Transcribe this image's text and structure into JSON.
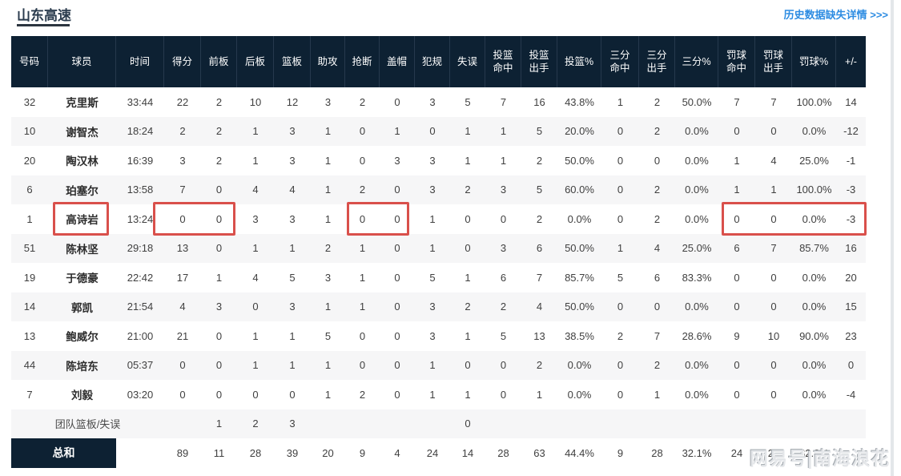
{
  "header": {
    "team_title": "山东高速",
    "history_link": "历史数据缺失详情 >>>"
  },
  "watermark": "网易号|南海浪花",
  "colors": {
    "header_bg": "#0d2133",
    "highlight_red": "#d9504b",
    "link_blue": "#2d8ce2",
    "row_stripe": "#f6f6f7"
  },
  "table": {
    "columns": [
      [
        "号码"
      ],
      [
        "球员"
      ],
      [
        "时间"
      ],
      [
        "得分"
      ],
      [
        "前板"
      ],
      [
        "后板"
      ],
      [
        "篮板"
      ],
      [
        "助攻"
      ],
      [
        "抢断"
      ],
      [
        "盖帽"
      ],
      [
        "犯规"
      ],
      [
        "失误"
      ],
      [
        "投篮",
        "命中"
      ],
      [
        "投篮",
        "出手"
      ],
      [
        "投篮%"
      ],
      [
        "三分",
        "命中"
      ],
      [
        "三分",
        "出手"
      ],
      [
        "三分%"
      ],
      [
        "罚球",
        "命中"
      ],
      [
        "罚球",
        "出手"
      ],
      [
        "罚球%"
      ],
      [
        "+/-"
      ]
    ],
    "rows": [
      [
        "32",
        "克里斯",
        "33:44",
        "22",
        "2",
        "10",
        "12",
        "3",
        "2",
        "0",
        "3",
        "5",
        "7",
        "16",
        "43.8%",
        "1",
        "2",
        "50.0%",
        "7",
        "7",
        "100.0%",
        "14"
      ],
      [
        "10",
        "谢智杰",
        "18:24",
        "2",
        "2",
        "1",
        "3",
        "1",
        "0",
        "1",
        "0",
        "1",
        "1",
        "5",
        "20.0%",
        "0",
        "2",
        "0.0%",
        "0",
        "0",
        "0.0%",
        "-12"
      ],
      [
        "20",
        "陶汉林",
        "16:39",
        "3",
        "2",
        "1",
        "3",
        "1",
        "0",
        "3",
        "3",
        "1",
        "1",
        "2",
        "50.0%",
        "0",
        "0",
        "0.0%",
        "1",
        "4",
        "25.0%",
        "-1"
      ],
      [
        "6",
        "珀塞尔",
        "13:58",
        "7",
        "0",
        "4",
        "4",
        "1",
        "2",
        "0",
        "3",
        "2",
        "3",
        "5",
        "60.0%",
        "0",
        "2",
        "0.0%",
        "1",
        "1",
        "100.0%",
        "-3"
      ],
      [
        "1",
        "高诗岩",
        "13:24",
        "0",
        "0",
        "3",
        "3",
        "1",
        "0",
        "0",
        "1",
        "0",
        "0",
        "2",
        "0.0%",
        "0",
        "2",
        "0.0%",
        "0",
        "0",
        "0.0%",
        "-3"
      ],
      [
        "51",
        "陈林坚",
        "29:18",
        "13",
        "0",
        "1",
        "1",
        "2",
        "1",
        "0",
        "1",
        "0",
        "3",
        "6",
        "50.0%",
        "1",
        "4",
        "25.0%",
        "6",
        "7",
        "85.7%",
        "16"
      ],
      [
        "19",
        "于德豪",
        "22:42",
        "17",
        "1",
        "4",
        "5",
        "3",
        "1",
        "0",
        "5",
        "1",
        "6",
        "7",
        "85.7%",
        "5",
        "6",
        "83.3%",
        "0",
        "0",
        "0.0%",
        "20"
      ],
      [
        "14",
        "郭凯",
        "21:54",
        "4",
        "3",
        "0",
        "3",
        "1",
        "1",
        "0",
        "3",
        "2",
        "2",
        "4",
        "50.0%",
        "0",
        "0",
        "0.0%",
        "0",
        "0",
        "0.0%",
        "15"
      ],
      [
        "13",
        "鲍威尔",
        "21:00",
        "21",
        "0",
        "1",
        "1",
        "5",
        "0",
        "0",
        "3",
        "1",
        "5",
        "13",
        "38.5%",
        "2",
        "7",
        "28.6%",
        "9",
        "10",
        "90.0%",
        "23"
      ],
      [
        "44",
        "陈培东",
        "05:37",
        "0",
        "0",
        "1",
        "1",
        "1",
        "0",
        "0",
        "1",
        "0",
        "0",
        "2",
        "0.0%",
        "0",
        "2",
        "0.0%",
        "0",
        "0",
        "0.0%",
        "0"
      ],
      [
        "7",
        "刘毅",
        "03:20",
        "0",
        "0",
        "0",
        "0",
        "1",
        "2",
        "0",
        "1",
        "1",
        "0",
        "1",
        "0.0%",
        "0",
        "1",
        "0.0%",
        "0",
        "0",
        "0.0%",
        "-4"
      ]
    ],
    "team_row": {
      "label": "团队篮板/失误",
      "values": [
        "",
        "1",
        "2",
        "3",
        "",
        "",
        "",
        "",
        "0",
        "",
        "",
        "",
        "",
        "",
        "",
        "",
        "",
        "",
        ""
      ]
    },
    "total_row": {
      "label": "总和",
      "values": [
        "89",
        "11",
        "28",
        "39",
        "20",
        "9",
        "4",
        "24",
        "14",
        "28",
        "63",
        "44.4%",
        "9",
        "28",
        "32.1%",
        "24",
        "29",
        "82.8%",
        ""
      ]
    },
    "highlight": {
      "player": "高诗岩",
      "row_index": 4,
      "highlighted_columns": [
        [
          1,
          1
        ],
        [
          3,
          4
        ],
        [
          8,
          9
        ],
        [
          18,
          21
        ]
      ]
    }
  }
}
